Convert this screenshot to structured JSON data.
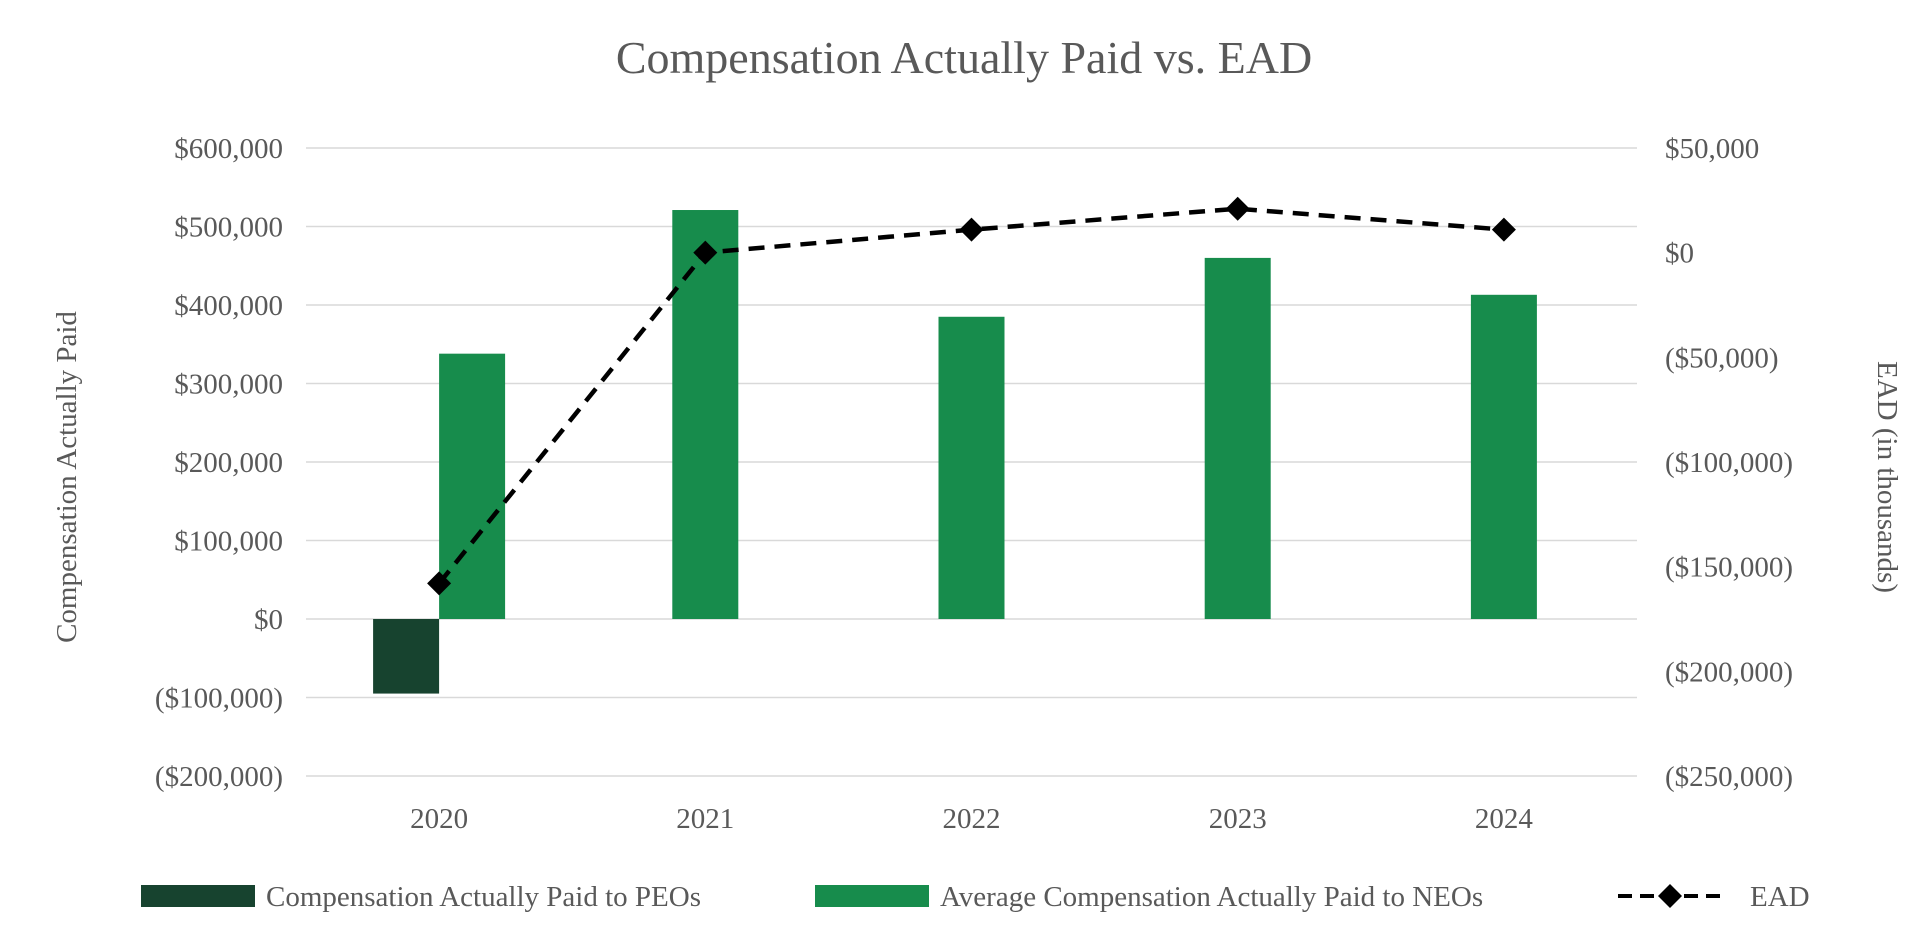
{
  "chart_data": {
    "type": "bar",
    "title": "Compensation Actually Paid vs. EAD",
    "categories": [
      "2020",
      "2021",
      "2022",
      "2023",
      "2024"
    ],
    "ylabel": "Compensation Actually Paid",
    "y2label": "EAD (in thousands)",
    "ylim": [
      -200000,
      600000
    ],
    "y2lim": [
      -250000,
      50000
    ],
    "yticks": [
      600000,
      500000,
      400000,
      300000,
      200000,
      100000,
      0,
      -100000,
      -200000
    ],
    "ytick_labels": [
      "$600,000",
      "$500,000",
      "$400,000",
      "$300,000",
      "$200,000",
      "$100,000",
      "$0",
      "($100,000)",
      "($200,000)"
    ],
    "y2ticks": [
      50000,
      0,
      -50000,
      -100000,
      -150000,
      -200000,
      -250000
    ],
    "y2tick_labels": [
      "$50,000",
      "$0",
      "($50,000)",
      "($100,000)",
      "($150,000)",
      "($200,000)",
      "($250,000)"
    ],
    "grid": true,
    "legend_position": "bottom",
    "series": [
      {
        "name": "Compensation Actually Paid to PEOs",
        "kind": "bar",
        "axis": "left",
        "color": "#17432f",
        "values": [
          -95000,
          null,
          null,
          null,
          null
        ]
      },
      {
        "name": "Average Compensation Actually Paid to NEOs",
        "kind": "bar",
        "axis": "left",
        "color": "#178c4c",
        "values": [
          338000,
          521000,
          385000,
          460000,
          413000
        ]
      },
      {
        "name": "EAD",
        "kind": "line",
        "axis": "right",
        "color": "#000000",
        "style": "dashed",
        "marker": "diamond",
        "values": [
          -158000,
          0,
          11000,
          21000,
          11000
        ]
      }
    ]
  }
}
